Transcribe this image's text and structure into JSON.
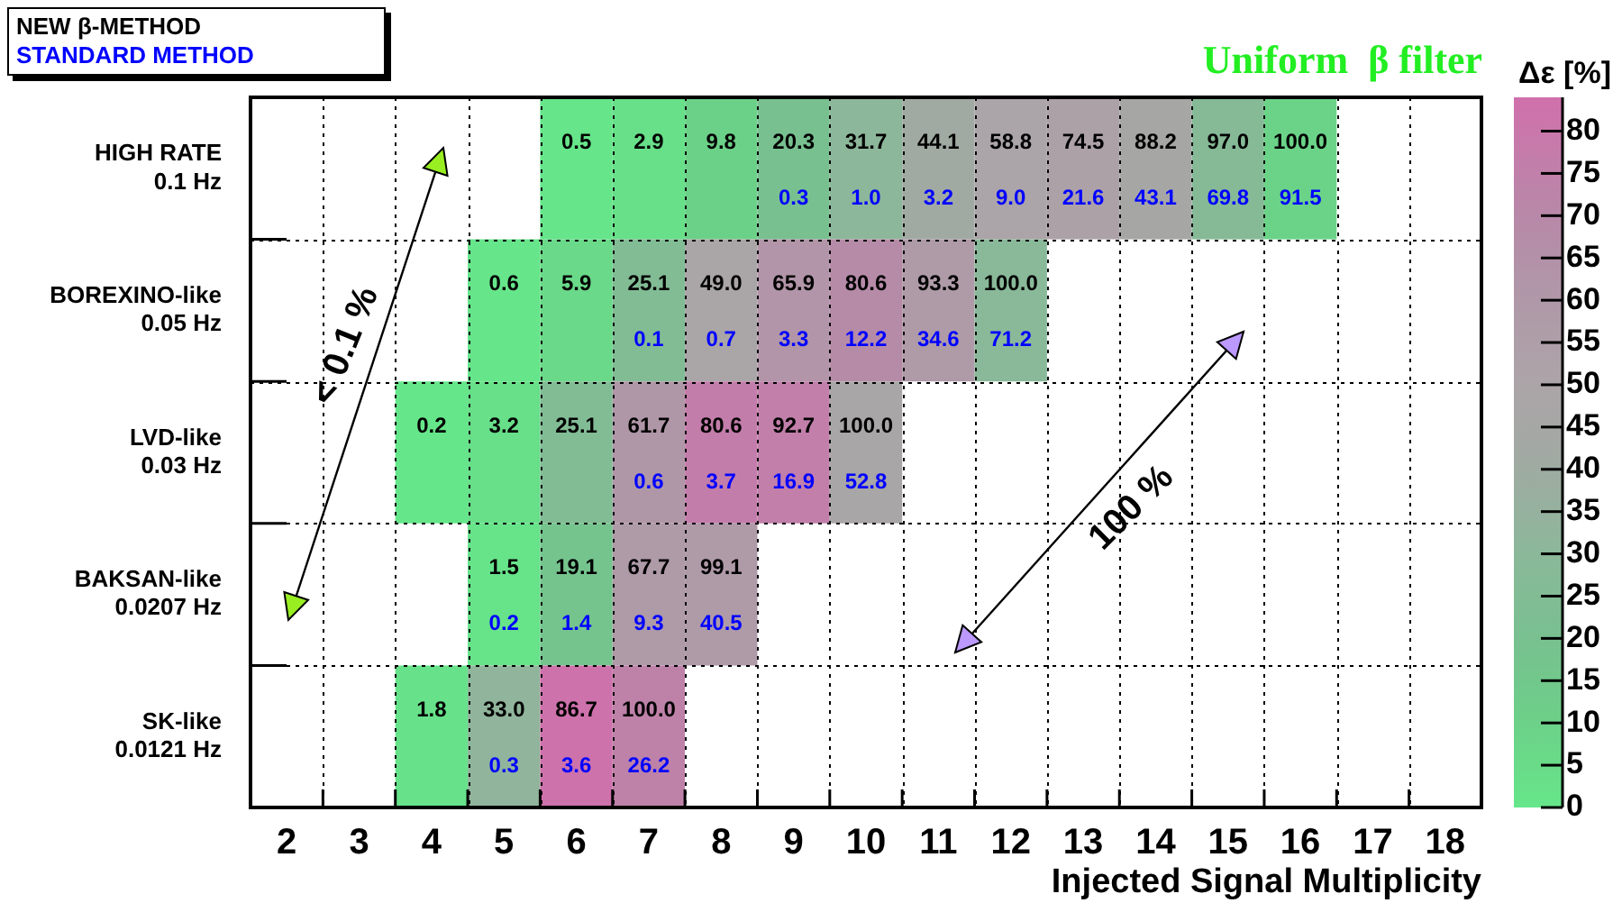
{
  "chart_data": {
    "type": "heatmap",
    "xlabel": "Injected Signal Multiplicity",
    "clabel": "Δε [%]",
    "grid": true,
    "annotations": [
      "Uniform  β filter",
      "< 0.1 %",
      "100 %",
      "NEW β-METHOD",
      "STANDARD METHOD"
    ],
    "categories": [
      "2",
      "3",
      "4",
      "5",
      "6",
      "7",
      "8",
      "9",
      "10",
      "11",
      "12",
      "13",
      "14",
      "15",
      "16",
      "17",
      "18"
    ],
    "y_categories": [
      "HIGH RATE\n0.1 Hz",
      "BOREXINO-like\n0.05 Hz",
      "LVD-like\n0.03 Hz",
      "BAKSAN-like\n0.0207 Hz",
      "SK-like\n0.0121 Hz"
    ],
    "cells": [
      [
        null,
        null,
        null,
        null,
        0.5,
        2.9,
        9.8,
        20.0,
        30.7,
        40.9,
        49.8,
        52.9,
        45.1,
        27.2,
        8.5,
        null,
        null
      ],
      [
        null,
        null,
        null,
        0.6,
        5.9,
        25.0,
        48.3,
        62.6,
        68.4,
        58.7,
        28.8,
        null,
        null,
        null,
        null,
        null,
        null
      ],
      [
        null,
        null,
        0.2,
        3.2,
        25.1,
        61.1,
        76.9,
        75.8,
        47.2,
        null,
        null,
        null,
        null,
        null,
        null,
        null,
        null
      ],
      [
        null,
        null,
        null,
        1.3,
        17.7,
        58.4,
        58.6,
        null,
        null,
        null,
        null,
        null,
        null,
        null,
        null,
        null,
        null
      ],
      [
        null,
        null,
        1.8,
        32.7,
        83.1,
        73.8,
        null,
        null,
        null,
        null,
        null,
        null,
        null,
        null,
        null,
        null,
        null
      ]
    ],
    "cell_labels": [
      [
        null,
        null,
        null,
        null,
        "0.5",
        "2.9",
        "9.8",
        "20.3\n0.3",
        "31.7\n1.0",
        "44.1\n3.2",
        "58.8\n9.0",
        "74.5\n21.6",
        "88.2\n43.1",
        "97.0\n69.8",
        "100.0\n91.5",
        null,
        null
      ],
      [
        null,
        null,
        null,
        "0.6",
        "5.9",
        "25.1\n0.1",
        "49.0\n0.7",
        "65.9\n3.3",
        "80.6\n12.2",
        "93.3\n34.6",
        "100.0\n71.2",
        null,
        null,
        null,
        null,
        null,
        null
      ],
      [
        null,
        null,
        "0.2",
        "3.2",
        "25.1",
        "61.7\n0.6",
        "80.6\n3.7",
        "92.7\n16.9",
        "100.0\n52.8",
        null,
        null,
        null,
        null,
        null,
        null,
        null,
        null
      ],
      [
        null,
        null,
        null,
        "1.5\n0.2",
        "19.1\n1.4",
        "67.7\n9.3",
        "99.1\n40.5",
        null,
        null,
        null,
        null,
        null,
        null,
        null,
        null,
        null,
        null
      ],
      [
        null,
        null,
        "1.8",
        "33.0\n0.3",
        "86.7\n3.6",
        "100.0\n26.2",
        null,
        null,
        null,
        null,
        null,
        null,
        null,
        null,
        null,
        null,
        null
      ]
    ],
    "clim": [
      0,
      84
    ],
    "cticks": [
      0,
      5,
      10,
      15,
      20,
      25,
      30,
      35,
      40,
      45,
      50,
      55,
      60,
      65,
      70,
      75,
      80
    ]
  }
}
